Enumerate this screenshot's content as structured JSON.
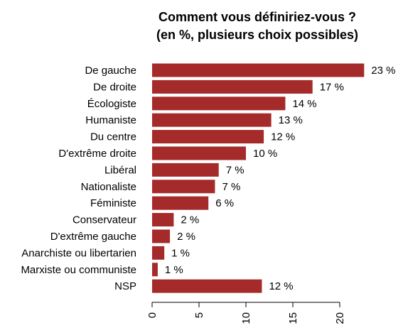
{
  "chart_data": {
    "type": "bar",
    "orientation": "horizontal",
    "title": "Comment vous définiriez-vous ?",
    "subtitle": "(en %, plusieurs choix possibles)",
    "categories": [
      "De gauche",
      "De droite",
      "Écologiste",
      "Humaniste",
      "Du centre",
      "D'extrême droite",
      "Libéral",
      "Nationaliste",
      "Féministe",
      "Conservateur",
      "D'extrême gauche",
      "Anarchiste ou libertarien",
      "Marxiste ou communiste",
      "NSP"
    ],
    "values": [
      22.6,
      17.1,
      14.2,
      12.7,
      11.9,
      10.0,
      7.1,
      6.7,
      6.0,
      2.3,
      1.9,
      1.3,
      0.6,
      11.7
    ],
    "value_labels": [
      "23 %",
      "17 %",
      "14 %",
      "13 %",
      "12 %",
      "10 %",
      "7 %",
      "7 %",
      "6 %",
      "2 %",
      "2 %",
      "1 %",
      "1 %",
      "12 %"
    ],
    "x_ticks": [
      0,
      5,
      10,
      15,
      20
    ],
    "x_tick_labels": [
      "0",
      "5",
      "10",
      "15",
      "20"
    ],
    "xlim": [
      0,
      23.5
    ],
    "bar_color": "#A52A2A",
    "grid": false,
    "legend": "none"
  }
}
